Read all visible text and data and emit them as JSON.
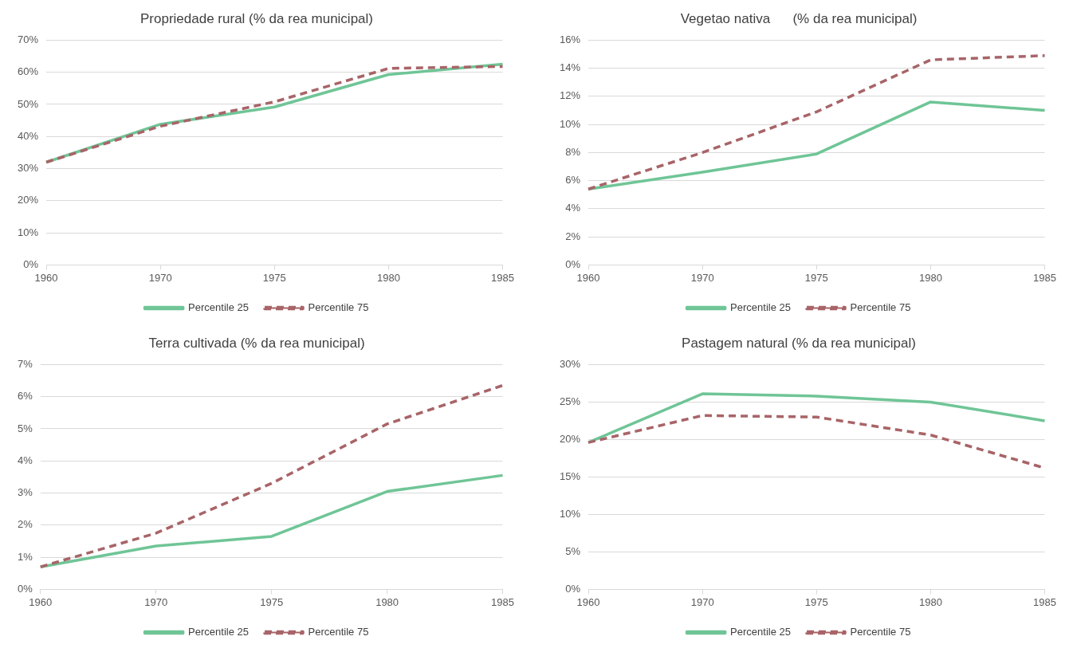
{
  "chart_data": [
    {
      "type": "line",
      "title": "Propriedade rural (% da rea municipal)",
      "categories": [
        "1960",
        "1970",
        "1975",
        "1980",
        "1985"
      ],
      "series": [
        {
          "name": "Percentile 25",
          "color": "#6fc596",
          "line_style": "solid",
          "values": [
            32,
            43.8,
            49.2,
            59.3,
            62.5
          ]
        },
        {
          "name": "Percentile 75",
          "color": "#a86468",
          "line_style": "dashed",
          "values": [
            32,
            43.2,
            50.8,
            61.2,
            61.8
          ]
        }
      ],
      "ylim": [
        0,
        70
      ],
      "yticks": [
        {
          "value": 0,
          "label": "0%"
        },
        {
          "value": 10,
          "label": "10%"
        },
        {
          "value": 20,
          "label": "20%"
        },
        {
          "value": 30,
          "label": "30%"
        },
        {
          "value": 40,
          "label": "40%"
        },
        {
          "value": 50,
          "label": "50%"
        },
        {
          "value": 60,
          "label": "60%"
        },
        {
          "value": 70,
          "label": "70%"
        }
      ],
      "grid": "y",
      "legend": "bottom",
      "marker": "none"
    },
    {
      "type": "line",
      "title": "Vegetao nativa      (% da rea municipal)",
      "categories": [
        "1960",
        "1970",
        "1975",
        "1980",
        "1985"
      ],
      "series": [
        {
          "name": "Percentile 25",
          "color": "#6fc596",
          "line_style": "solid",
          "values": [
            5.4,
            6.6,
            7.9,
            11.6,
            11.0
          ]
        },
        {
          "name": "Percentile 75",
          "color": "#a86468",
          "line_style": "dashed",
          "values": [
            5.4,
            8.0,
            10.9,
            14.6,
            14.9
          ]
        }
      ],
      "ylim": [
        0,
        16
      ],
      "yticks": [
        {
          "value": 0,
          "label": "0%"
        },
        {
          "value": 2,
          "label": "2%"
        },
        {
          "value": 4,
          "label": "4%"
        },
        {
          "value": 6,
          "label": "6%"
        },
        {
          "value": 8,
          "label": "8%"
        },
        {
          "value": 10,
          "label": "10%"
        },
        {
          "value": 12,
          "label": "12%"
        },
        {
          "value": 14,
          "label": "14%"
        },
        {
          "value": 16,
          "label": "16%"
        }
      ],
      "grid": "y",
      "legend": "bottom",
      "marker": "none"
    },
    {
      "type": "line",
      "title": "Terra cultivada (% da rea municipal)",
      "categories": [
        "1960",
        "1970",
        "1975",
        "1980",
        "1985"
      ],
      "series": [
        {
          "name": "Percentile 25",
          "color": "#6fc596",
          "line_style": "solid",
          "values": [
            0.7,
            1.35,
            1.65,
            3.05,
            3.55
          ]
        },
        {
          "name": "Percentile 75",
          "color": "#a86468",
          "line_style": "dashed",
          "values": [
            0.7,
            1.75,
            3.3,
            5.15,
            6.35
          ]
        }
      ],
      "ylim": [
        0,
        7
      ],
      "yticks": [
        {
          "value": 0,
          "label": "0%"
        },
        {
          "value": 1,
          "label": "1%"
        },
        {
          "value": 2,
          "label": "2%"
        },
        {
          "value": 3,
          "label": "3%"
        },
        {
          "value": 4,
          "label": "4%"
        },
        {
          "value": 5,
          "label": "5%"
        },
        {
          "value": 6,
          "label": "6%"
        },
        {
          "value": 7,
          "label": "7%"
        }
      ],
      "grid": "y",
      "legend": "bottom",
      "marker": "none"
    },
    {
      "type": "line",
      "title": "Pastagem natural (% da rea municipal)",
      "categories": [
        "1960",
        "1970",
        "1975",
        "1980",
        "1985"
      ],
      "series": [
        {
          "name": "Percentile 25",
          "color": "#6fc596",
          "line_style": "solid",
          "values": [
            19.6,
            26.1,
            25.8,
            25.0,
            22.5
          ]
        },
        {
          "name": "Percentile 75",
          "color": "#a86468",
          "line_style": "dashed",
          "values": [
            19.6,
            23.2,
            23.0,
            20.6,
            16.2
          ]
        }
      ],
      "ylim": [
        0,
        30
      ],
      "yticks": [
        {
          "value": 0,
          "label": "0%"
        },
        {
          "value": 5,
          "label": "5%"
        },
        {
          "value": 10,
          "label": "10%"
        },
        {
          "value": 15,
          "label": "15%"
        },
        {
          "value": 20,
          "label": "20%"
        },
        {
          "value": 25,
          "label": "25%"
        },
        {
          "value": 30,
          "label": "30%"
        }
      ],
      "grid": "y",
      "legend": "bottom",
      "marker": "none"
    }
  ]
}
